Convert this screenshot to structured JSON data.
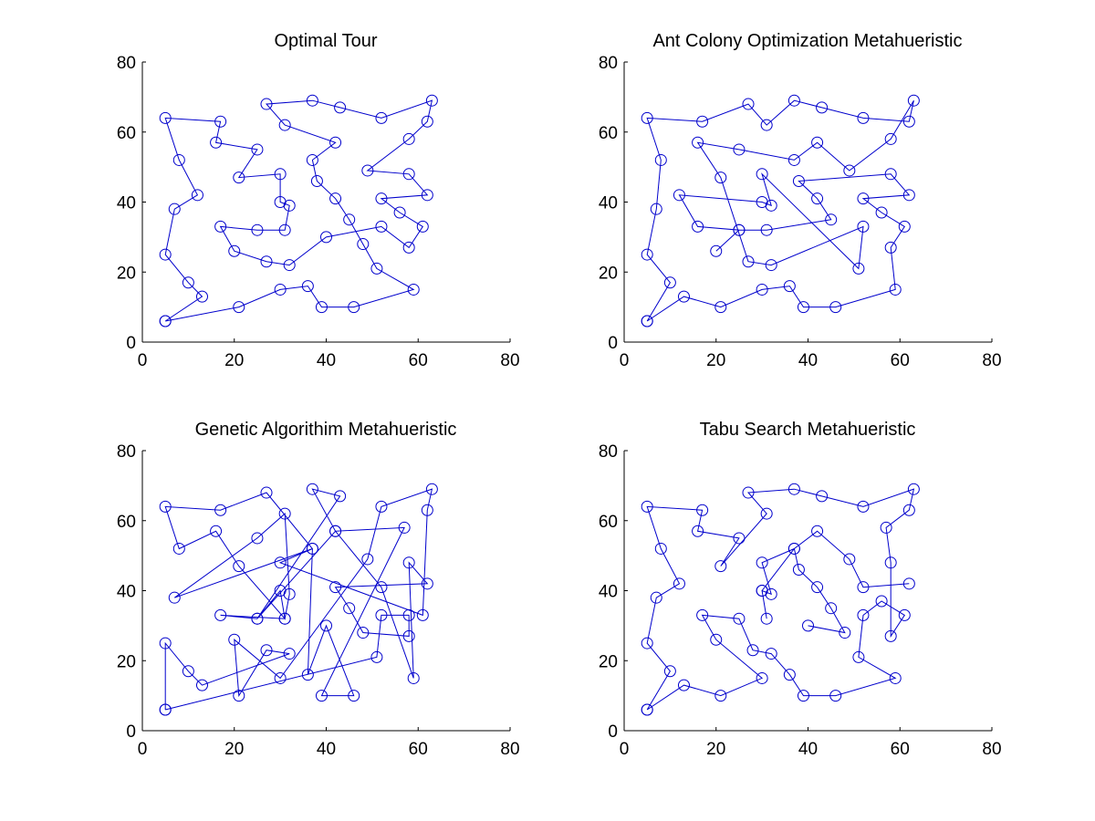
{
  "figure": {
    "background": "#ffffff",
    "line_color": "#0000cc",
    "marker_color": "#0000cc",
    "axis_color": "#000000"
  },
  "chart_data": [
    {
      "type": "line",
      "title": "Optimal Tour",
      "xlabel": "",
      "ylabel": "",
      "xlim": [
        0,
        80
      ],
      "ylim": [
        0,
        80
      ],
      "xticks": [
        "0",
        "20",
        "40",
        "60",
        "80"
      ],
      "yticks": [
        "0",
        "20",
        "40",
        "60",
        "80"
      ],
      "grid": false,
      "series": [
        {
          "marker": "circle",
          "points": [
            [
              5,
              6
            ],
            [
              21,
              10
            ],
            [
              30,
              15
            ],
            [
              36,
              16
            ],
            [
              39,
              10
            ],
            [
              46,
              10
            ],
            [
              59,
              15
            ],
            [
              51,
              21
            ],
            [
              48,
              28
            ],
            [
              45,
              35
            ],
            [
              42,
              41
            ],
            [
              38,
              46
            ],
            [
              37,
              52
            ],
            [
              42,
              57
            ],
            [
              31,
              62
            ],
            [
              27,
              68
            ],
            [
              37,
              69
            ],
            [
              43,
              67
            ],
            [
              52,
              64
            ],
            [
              63,
              69
            ],
            [
              62,
              63
            ],
            [
              58,
              58
            ],
            [
              49,
              49
            ],
            [
              58,
              48
            ],
            [
              62,
              42
            ],
            [
              52,
              41
            ],
            [
              56,
              37
            ],
            [
              61,
              33
            ],
            [
              58,
              27
            ],
            [
              52,
              33
            ],
            [
              40,
              30
            ],
            [
              32,
              22
            ],
            [
              27,
              23
            ],
            [
              20,
              26
            ],
            [
              17,
              33
            ],
            [
              25,
              32
            ],
            [
              31,
              32
            ],
            [
              32,
              39
            ],
            [
              30,
              40
            ],
            [
              30,
              48
            ],
            [
              21,
              47
            ],
            [
              25,
              55
            ],
            [
              16,
              57
            ],
            [
              17,
              63
            ],
            [
              5,
              64
            ],
            [
              8,
              52
            ],
            [
              12,
              42
            ],
            [
              7,
              38
            ],
            [
              5,
              25
            ],
            [
              10,
              17
            ],
            [
              13,
              13
            ],
            [
              5,
              6
            ]
          ]
        }
      ]
    },
    {
      "type": "line",
      "title": "Ant Colony Optimization Metahueristic",
      "xlabel": "",
      "ylabel": "",
      "xlim": [
        0,
        80
      ],
      "ylim": [
        0,
        80
      ],
      "xticks": [
        "0",
        "20",
        "40",
        "60",
        "80"
      ],
      "yticks": [
        "0",
        "20",
        "40",
        "60",
        "80"
      ],
      "grid": false,
      "series": [
        {
          "marker": "circle",
          "points": [
            [
              5,
              6
            ],
            [
              13,
              13
            ],
            [
              21,
              10
            ],
            [
              30,
              15
            ],
            [
              36,
              16
            ],
            [
              39,
              10
            ],
            [
              46,
              10
            ],
            [
              59,
              15
            ],
            [
              58,
              27
            ],
            [
              61,
              33
            ],
            [
              56,
              37
            ],
            [
              52,
              41
            ],
            [
              62,
              42
            ],
            [
              58,
              48
            ],
            [
              38,
              46
            ],
            [
              42,
              41
            ],
            [
              45,
              35
            ],
            [
              31,
              32
            ],
            [
              25,
              32
            ],
            [
              20,
              26
            ],
            [
              25,
              32
            ],
            [
              16,
              33
            ],
            [
              12,
              42
            ],
            [
              30,
              40
            ],
            [
              32,
              39
            ],
            [
              30,
              48
            ],
            [
              51,
              21
            ],
            [
              52,
              33
            ],
            [
              32,
              22
            ],
            [
              27,
              23
            ],
            [
              21,
              47
            ],
            [
              16,
              57
            ],
            [
              25,
              55
            ],
            [
              37,
              52
            ],
            [
              42,
              57
            ],
            [
              49,
              49
            ],
            [
              58,
              58
            ],
            [
              63,
              69
            ],
            [
              62,
              63
            ],
            [
              52,
              64
            ],
            [
              43,
              67
            ],
            [
              37,
              69
            ],
            [
              31,
              62
            ],
            [
              27,
              68
            ],
            [
              17,
              63
            ],
            [
              5,
              64
            ],
            [
              8,
              52
            ],
            [
              7,
              38
            ],
            [
              5,
              25
            ],
            [
              10,
              17
            ],
            [
              5,
              6
            ]
          ]
        }
      ]
    },
    {
      "type": "line",
      "title": "Genetic Algorithim Metahueristic",
      "xlabel": "",
      "ylabel": "",
      "xlim": [
        0,
        80
      ],
      "ylim": [
        0,
        80
      ],
      "xticks": [
        "0",
        "20",
        "40",
        "60",
        "80"
      ],
      "yticks": [
        "0",
        "20",
        "40",
        "60",
        "80"
      ],
      "grid": false,
      "series": [
        {
          "marker": "circle",
          "points": [
            [
              5,
              6
            ],
            [
              51,
              21
            ],
            [
              52,
              33
            ],
            [
              58,
              33
            ],
            [
              58,
              27
            ],
            [
              48,
              28
            ],
            [
              45,
              35
            ],
            [
              42,
              41
            ],
            [
              62,
              42
            ],
            [
              58,
              48
            ],
            [
              59,
              15
            ],
            [
              52,
              41
            ],
            [
              42,
              57
            ],
            [
              57,
              58
            ],
            [
              39,
              10
            ],
            [
              46,
              10
            ],
            [
              40,
              30
            ],
            [
              36,
              16
            ],
            [
              37,
              52
            ],
            [
              27,
              68
            ],
            [
              17,
              63
            ],
            [
              5,
              64
            ],
            [
              8,
              52
            ],
            [
              16,
              57
            ],
            [
              21,
              47
            ],
            [
              31,
              32
            ],
            [
              30,
              40
            ],
            [
              25,
              32
            ],
            [
              42,
              57
            ],
            [
              37,
              69
            ],
            [
              43,
              67
            ],
            [
              25,
              32
            ],
            [
              17,
              33
            ],
            [
              31,
              32
            ],
            [
              32,
              39
            ],
            [
              31,
              62
            ],
            [
              25,
              55
            ],
            [
              7,
              38
            ],
            [
              37,
              52
            ],
            [
              30,
              48
            ],
            [
              61,
              33
            ],
            [
              62,
              63
            ],
            [
              63,
              69
            ],
            [
              52,
              64
            ],
            [
              49,
              49
            ],
            [
              30,
              15
            ],
            [
              20,
              26
            ],
            [
              21,
              10
            ],
            [
              27,
              23
            ],
            [
              32,
              22
            ],
            [
              13,
              13
            ],
            [
              10,
              17
            ],
            [
              5,
              25
            ],
            [
              5,
              6
            ]
          ]
        }
      ]
    },
    {
      "type": "line",
      "title": "Tabu Search Metahueristic",
      "xlabel": "",
      "ylabel": "",
      "xlim": [
        0,
        80
      ],
      "ylim": [
        0,
        80
      ],
      "xticks": [
        "0",
        "20",
        "40",
        "60",
        "80"
      ],
      "yticks": [
        "0",
        "20",
        "40",
        "60",
        "80"
      ],
      "grid": false,
      "series": [
        {
          "marker": "circle",
          "points": [
            [
              5,
              6
            ],
            [
              13,
              13
            ],
            [
              21,
              10
            ],
            [
              30,
              15
            ],
            [
              20,
              26
            ],
            [
              17,
              33
            ],
            [
              25,
              32
            ],
            [
              28,
              23
            ],
            [
              32,
              22
            ],
            [
              36,
              16
            ],
            [
              39,
              10
            ],
            [
              46,
              10
            ],
            [
              59,
              15
            ],
            [
              51,
              21
            ],
            [
              52,
              33
            ],
            [
              56,
              37
            ],
            [
              61,
              33
            ],
            [
              58,
              27
            ],
            [
              58,
              48
            ],
            [
              57,
              58
            ],
            [
              62,
              63
            ],
            [
              63,
              69
            ],
            [
              52,
              64
            ],
            [
              43,
              67
            ],
            [
              37,
              69
            ],
            [
              27,
              68
            ],
            [
              31,
              62
            ],
            [
              21,
              47
            ],
            [
              25,
              55
            ],
            [
              16,
              57
            ],
            [
              17,
              63
            ],
            [
              5,
              64
            ],
            [
              8,
              52
            ],
            [
              12,
              42
            ],
            [
              7,
              38
            ],
            [
              5,
              25
            ],
            [
              10,
              17
            ],
            [
              5,
              6
            ]
          ]
        },
        {
          "marker": "circle",
          "points": [
            [
              40,
              30
            ],
            [
              48,
              28
            ],
            [
              45,
              35
            ],
            [
              42,
              41
            ],
            [
              38,
              46
            ],
            [
              37,
              52
            ],
            [
              30,
              48
            ],
            [
              32,
              39
            ],
            [
              30,
              40
            ],
            [
              31,
              32
            ],
            [
              30,
              40
            ],
            [
              37,
              52
            ],
            [
              42,
              57
            ],
            [
              49,
              49
            ],
            [
              52,
              41
            ],
            [
              62,
              42
            ]
          ]
        }
      ]
    }
  ]
}
